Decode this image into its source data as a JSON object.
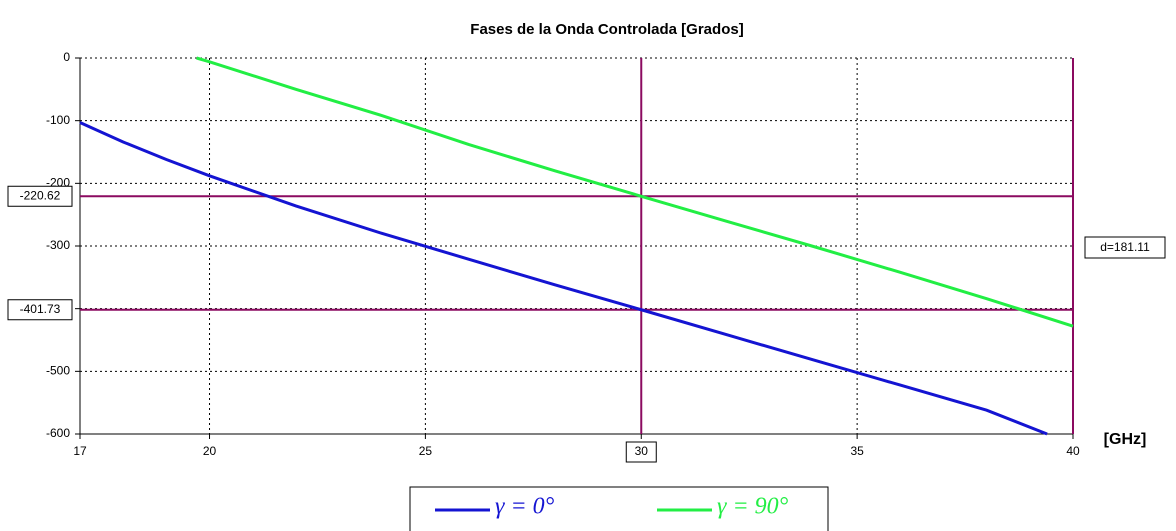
{
  "chart_data": {
    "type": "line",
    "title": "Fases de la Onda Controlada [Grados]",
    "x_label": "[GHz]",
    "xlim": [
      17,
      40
    ],
    "xticks": [
      17,
      20,
      25,
      30,
      35,
      40
    ],
    "ylim": [
      -600,
      0
    ],
    "yticks": [
      -600,
      -500,
      -400,
      -300,
      -200,
      -100,
      0
    ],
    "grid": true,
    "series": [
      {
        "name": "γ = 0°",
        "color": "#1414d2",
        "x": [
          17,
          18,
          19,
          20,
          22,
          24,
          26,
          28,
          30,
          32,
          34,
          36,
          38,
          39.4
        ],
        "values": [
          -103,
          -134,
          -162,
          -188,
          -236,
          -280,
          -321,
          -362,
          -401.73,
          -442,
          -482,
          -522,
          -562,
          -600
        ]
      },
      {
        "name": "γ = 90°",
        "color": "#22ee44",
        "x": [
          19.7,
          20,
          22,
          24,
          26,
          28,
          30,
          32,
          34,
          36,
          38,
          40
        ],
        "values": [
          0,
          -6,
          -50,
          -92,
          -138,
          -180,
          -220.62,
          -261,
          -301,
          -342,
          -384,
          -428
        ]
      }
    ],
    "cursor_x": 30,
    "cursor_y": [
      -220.62,
      -401.73
    ],
    "difference_label": "d=181.11",
    "legend": "bottom"
  }
}
